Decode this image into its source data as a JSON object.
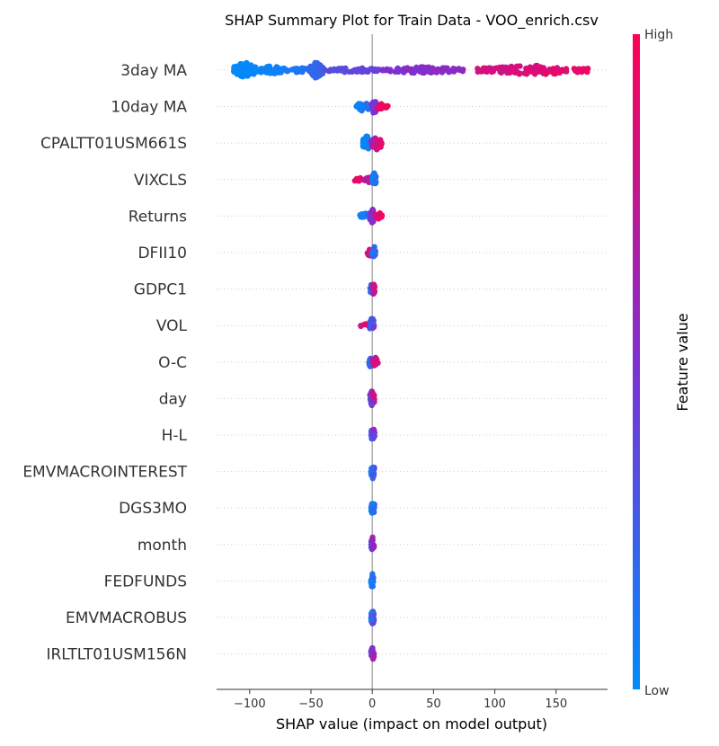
{
  "chart_data": {
    "type": "scatter",
    "title": "SHAP Summary Plot for Train Data - VOO_enrich.csv",
    "xlabel": "SHAP value (impact on model output)",
    "xlim": [
      -127,
      192
    ],
    "xticks": [
      -100,
      -50,
      0,
      50,
      100,
      150
    ],
    "colorbar": {
      "title": "Feature value",
      "high_label": "High",
      "low_label": "Low",
      "low_color": "#008bfb",
      "mid_color": "#7f2fd1",
      "high_color": "#ff0052"
    },
    "features": [
      {
        "name": "3day MA",
        "clusters": [
          {
            "min": -113,
            "max": -95,
            "count": 70,
            "spread": 1.0,
            "color_lo": 0.0,
            "color_hi": 0.03
          },
          {
            "min": -95,
            "max": -70,
            "count": 45,
            "spread": 0.55,
            "color_lo": 0.02,
            "color_hi": 0.08
          },
          {
            "min": -70,
            "max": -52,
            "count": 25,
            "spread": 0.35,
            "color_lo": 0.08,
            "color_hi": 0.15
          },
          {
            "min": -52,
            "max": -40,
            "count": 55,
            "spread": 1.0,
            "color_lo": 0.15,
            "color_hi": 0.25
          },
          {
            "min": -40,
            "max": 8,
            "count": 60,
            "spread": 0.3,
            "color_lo": 0.28,
            "color_hi": 0.45
          },
          {
            "min": 8,
            "max": 75,
            "count": 90,
            "spread": 0.4,
            "color_lo": 0.45,
            "color_hi": 0.62
          },
          {
            "min": 85,
            "max": 176,
            "count": 140,
            "spread": 0.6,
            "color_lo": 0.72,
            "color_hi": 1.0
          }
        ]
      },
      {
        "name": "10day MA",
        "clusters": [
          {
            "min": -13,
            "max": -1,
            "count": 30,
            "spread": 0.6,
            "color_lo": 0.02,
            "color_hi": 0.2
          },
          {
            "min": -1,
            "max": 4,
            "count": 25,
            "spread": 0.9,
            "color_lo": 0.35,
            "color_hi": 0.6
          },
          {
            "min": 4,
            "max": 13,
            "count": 20,
            "spread": 0.4,
            "color_lo": 0.85,
            "color_hi": 1.0
          }
        ]
      },
      {
        "name": "CPALTT01USM661S",
        "clusters": [
          {
            "min": -8,
            "max": -1,
            "count": 45,
            "spread": 0.9,
            "color_lo": 0.0,
            "color_hi": 0.12
          },
          {
            "min": -1,
            "max": 8,
            "count": 35,
            "spread": 0.9,
            "color_lo": 0.55,
            "color_hi": 0.95
          }
        ]
      },
      {
        "name": "VIXCLS",
        "clusters": [
          {
            "min": -15,
            "max": -6,
            "count": 8,
            "spread": 0.3,
            "color_lo": 0.85,
            "color_hi": 1.0
          },
          {
            "min": -6,
            "max": 0,
            "count": 20,
            "spread": 0.4,
            "color_lo": 0.6,
            "color_hi": 0.9
          },
          {
            "min": 0,
            "max": 3,
            "count": 30,
            "spread": 1.0,
            "color_lo": 0.0,
            "color_hi": 0.2
          }
        ]
      },
      {
        "name": "Returns",
        "clusters": [
          {
            "min": -10,
            "max": -2,
            "count": 15,
            "spread": 0.4,
            "color_lo": 0.02,
            "color_hi": 0.2
          },
          {
            "min": -2,
            "max": 2,
            "count": 30,
            "spread": 1.0,
            "color_lo": 0.25,
            "color_hi": 0.7
          },
          {
            "min": 2,
            "max": 8,
            "count": 10,
            "spread": 0.5,
            "color_lo": 0.8,
            "color_hi": 1.0
          }
        ]
      },
      {
        "name": "DFII10",
        "clusters": [
          {
            "min": -4,
            "max": 0,
            "count": 15,
            "spread": 0.5,
            "color_lo": 0.7,
            "color_hi": 0.95
          },
          {
            "min": 0,
            "max": 3,
            "count": 20,
            "spread": 0.8,
            "color_lo": 0.05,
            "color_hi": 0.3
          }
        ]
      },
      {
        "name": "GDPC1",
        "clusters": [
          {
            "min": -2,
            "max": 0,
            "count": 15,
            "spread": 0.6,
            "color_lo": 0.05,
            "color_hi": 0.3
          },
          {
            "min": 0,
            "max": 2,
            "count": 20,
            "spread": 0.9,
            "color_lo": 0.6,
            "color_hi": 1.0
          }
        ]
      },
      {
        "name": "VOL",
        "clusters": [
          {
            "min": -10,
            "max": -2,
            "count": 8,
            "spread": 0.3,
            "color_lo": 0.8,
            "color_hi": 1.0
          },
          {
            "min": -2,
            "max": 2,
            "count": 25,
            "spread": 1.0,
            "color_lo": 0.1,
            "color_hi": 0.5
          }
        ]
      },
      {
        "name": "O-C",
        "clusters": [
          {
            "min": -3,
            "max": 0,
            "count": 15,
            "spread": 0.6,
            "color_lo": 0.1,
            "color_hi": 0.4
          },
          {
            "min": 0,
            "max": 5,
            "count": 15,
            "spread": 0.6,
            "color_lo": 0.6,
            "color_hi": 1.0
          }
        ]
      },
      {
        "name": "day",
        "clusters": [
          {
            "min": -2,
            "max": 2,
            "count": 30,
            "spread": 1.0,
            "color_lo": 0.2,
            "color_hi": 0.95
          }
        ]
      },
      {
        "name": "H-L",
        "clusters": [
          {
            "min": -1,
            "max": 2,
            "count": 25,
            "spread": 1.0,
            "color_lo": 0.1,
            "color_hi": 0.7
          }
        ]
      },
      {
        "name": "EMVMACROINTEREST",
        "clusters": [
          {
            "min": -1,
            "max": 2,
            "count": 25,
            "spread": 1.0,
            "color_lo": 0.0,
            "color_hi": 0.4
          }
        ]
      },
      {
        "name": "DGS3MO",
        "clusters": [
          {
            "min": -1,
            "max": 2,
            "count": 25,
            "spread": 1.0,
            "color_lo": 0.0,
            "color_hi": 0.3
          }
        ]
      },
      {
        "name": "month",
        "clusters": [
          {
            "min": -1,
            "max": 1.5,
            "count": 25,
            "spread": 1.0,
            "color_lo": 0.2,
            "color_hi": 0.95
          }
        ]
      },
      {
        "name": "FEDFUNDS",
        "clusters": [
          {
            "min": -1,
            "max": 1,
            "count": 25,
            "spread": 1.0,
            "color_lo": 0.0,
            "color_hi": 0.2
          }
        ]
      },
      {
        "name": "EMVMACROBUS",
        "clusters": [
          {
            "min": -1,
            "max": 1.5,
            "count": 25,
            "spread": 1.0,
            "color_lo": 0.05,
            "color_hi": 0.45
          }
        ]
      },
      {
        "name": "IRLTLT01USM156N",
        "clusters": [
          {
            "min": -1,
            "max": 1.5,
            "count": 25,
            "spread": 1.0,
            "color_lo": 0.3,
            "color_hi": 0.9
          }
        ]
      }
    ]
  }
}
